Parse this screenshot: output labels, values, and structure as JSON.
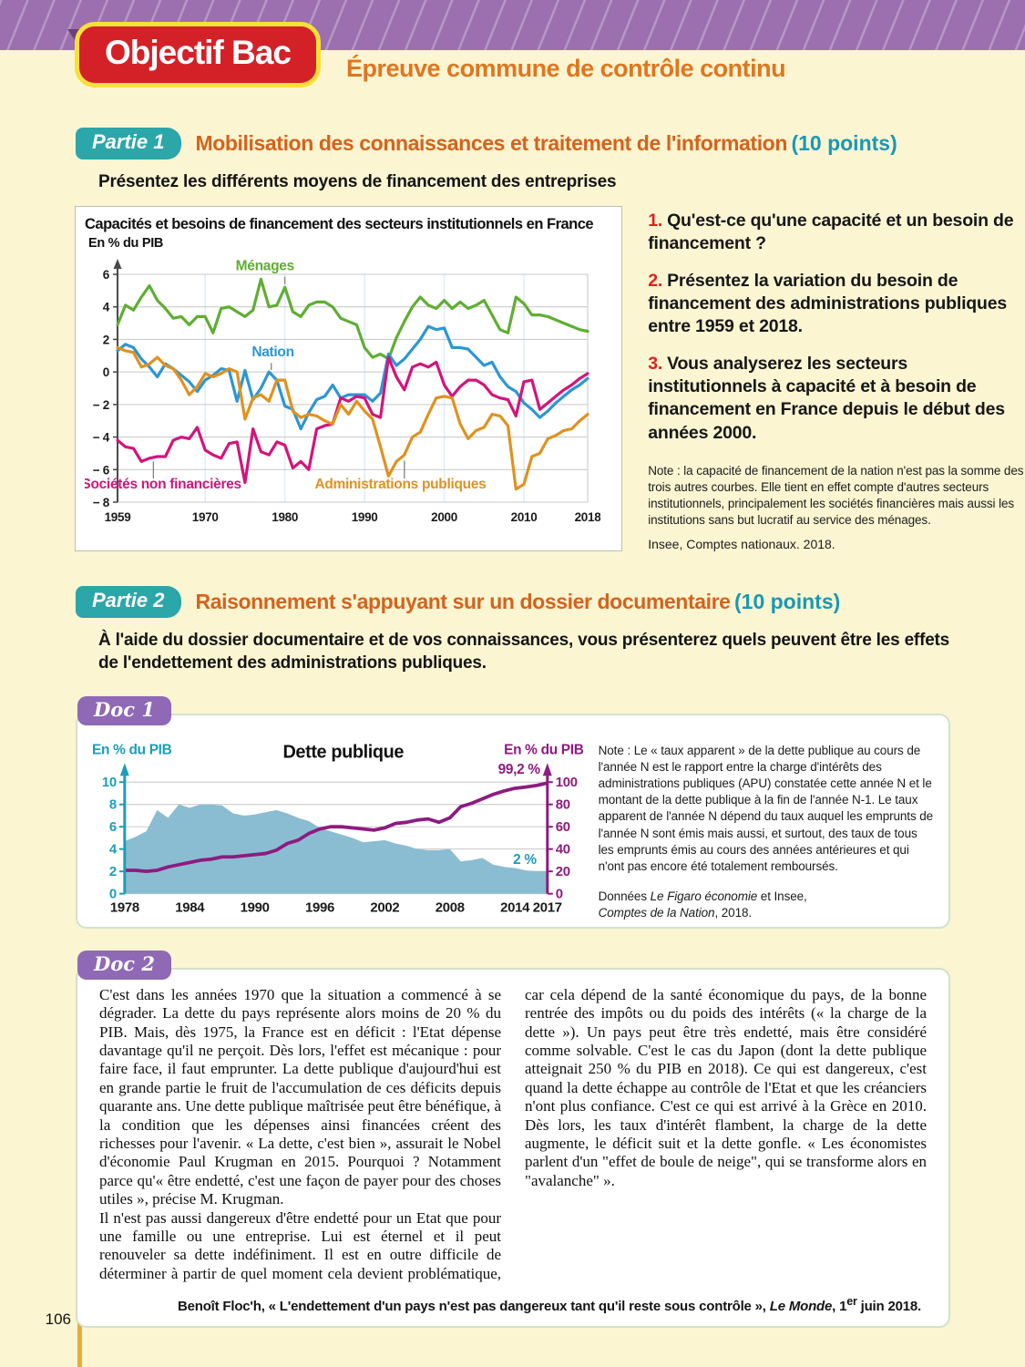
{
  "header": {
    "badge": "Objectif Bac",
    "subtitle": "Épreuve commune de contrôle continu"
  },
  "part1": {
    "badge": "Partie 1",
    "title": "Mobilisation des connaissances et traitement de l'information",
    "points": "(10 points)",
    "instruction": "Présentez les différents moyens de financement des entreprises",
    "questions": [
      {
        "num": "1.",
        "text": "Qu'est-ce qu'une capacité et un besoin de financement ?"
      },
      {
        "num": "2.",
        "text": "Présentez la variation du besoin de financement des administrations publiques entre 1959 et 2018."
      },
      {
        "num": "3.",
        "text": "Vous analyserez les secteurs institutionnels à capacité et à besoin de financement en France depuis le début des années 2000."
      }
    ],
    "note": "Note : la capacité de financement de la nation n'est pas la somme des trois autres courbes. Elle tient en effet compte d'autres secteurs institutionnels, principalement les sociétés financières mais aussi les institutions sans but lucratif au service des ménages.",
    "source": "Insee, Comptes nationaux. 2018."
  },
  "part2": {
    "badge": "Partie 2",
    "title": "Raisonnement s'appuyant sur un dossier documentaire",
    "points": "(10 points)",
    "instruction": "À l'aide du dossier documentaire et de vos connaissances, vous présenterez quels peuvent être les effets de l'endettement des administrations publiques."
  },
  "doc1": {
    "badge": "Doc 1",
    "note": "Note : Le « taux apparent » de la dette publique au cours de l'année N est le rapport entre la charge d'intérêts des administrations publiques (APU) constatée cette année N et le montant de la dette publique à la fin de l'année N-1. Le taux apparent de l'année N dépend du taux auquel les emprunts de l'année N sont émis mais aussi, et surtout, des taux de tous les emprunts émis au cours des années antérieures et qui n'ont pas encore été totalement remboursés.",
    "source": {
      "pre": "Données ",
      "italic1": "Le Figaro économie",
      "mid": " et Insee,",
      "italic2": "Comptes de la Nation",
      "post": ", 2018."
    }
  },
  "doc2": {
    "badge": "Doc 2",
    "paragraphs": [
      "C'est dans les années 1970 que la situation a commencé à se dégrader. La dette du pays représente alors moins de 20 % du PIB. Mais, dès 1975, la France est en déficit : l'Etat dépense davantage qu'il ne perçoit. Dès lors, l'effet est mécanique : pour faire face, il faut emprunter. La dette publique d'aujourd'hui est en grande partie le fruit de l'accumulation de ces déficits depuis quarante ans. Une dette publique maîtrisée peut être bénéfique, à la condition que les dépenses ainsi financées créent des richesses pour l'avenir. « La dette, c'est bien », assurait le Nobel d'économie Paul Krugman en 2015. Pourquoi ? Notamment parce qu'« être endetté, c'est une façon de payer pour des choses utiles », précise M. Krugman.",
      "Il n'est pas aussi dangereux d'être endetté pour un Etat que pour une famille ou une entreprise. Lui est éternel et il peut renouveler sa dette indéfiniment. Il est en outre difficile de déterminer à partir de quel moment cela devient problématique, car cela dépend de la santé économique du pays, de la bonne rentrée des impôts ou du poids des intérêts (« la charge de la dette »). Un pays peut être très endetté, mais être considéré comme solvable. C'est le cas du Japon (dont la dette publique atteignait 250 % du PIB en 2018). Ce qui est dangereux, c'est quand la dette échappe au contrôle de l'Etat et que les créanciers n'ont plus confiance. C'est ce qui est arrivé à la Grèce en 2010. Dès lors, les taux d'intérêt flambent, la charge de la dette augmente, le déficit suit et la dette gonfle. « Les économistes parlent d'un \"effet de boule de neige\", qui se transforme alors en \"avalanche\" »."
    ],
    "citation": {
      "pre": "Benoît Floc'h, « L'endettement d'un pays n'est pas dangereux tant qu'il reste sous contrôle », ",
      "italic": "Le Monde",
      "mid": ", 1",
      "sup": "er",
      "post": " juin 2018."
    }
  },
  "page": {
    "number": "106"
  },
  "colors": {
    "band_purple": "#9C70AF",
    "badge_red": "#D42128",
    "badge_border_yellow": "#F6E03A",
    "teal_badge": "#2BA6A9",
    "heading_orange": "#D6621C",
    "points_teal": "#1899B5",
    "question_red": "#E0211A",
    "doc_badge_purple": "#8F68B6",
    "doc_border_green": "#CFE3C8",
    "page_bg": "#FBF5D2",
    "edge_gold": "#E2AF3B"
  },
  "chart_data": [
    {
      "type": "line",
      "title": "Capacités et besoins de financement des secteurs institutionnels en France",
      "unit_label": "En % du PIB",
      "x_start": 1959,
      "x_end": 2018,
      "x_ticks": [
        1959,
        1970,
        1980,
        1990,
        2000,
        2010,
        2018
      ],
      "ylim": [
        -8,
        6
      ],
      "y_ticks": [
        6,
        4,
        2,
        0,
        -2,
        -4,
        -6,
        -8
      ],
      "grid": true,
      "source": "Insee, Comptes nationaux. 2018.",
      "series": [
        {
          "name": "Ménages",
          "color": "#5FAE32",
          "values": [
            2.9,
            4.1,
            3.8,
            4.6,
            5.3,
            4.4,
            3.9,
            3.3,
            3.4,
            2.9,
            3.4,
            3.4,
            2.4,
            3.9,
            4.0,
            3.7,
            3.4,
            3.8,
            5.7,
            4.0,
            4.1,
            5.2,
            3.7,
            3.4,
            4.1,
            4.3,
            4.3,
            4.0,
            3.3,
            3.1,
            2.9,
            1.5,
            0.9,
            1.1,
            0.8,
            2.1,
            3.1,
            4.0,
            4.6,
            4.1,
            3.9,
            4.4,
            3.9,
            4.3,
            3.9,
            4.1,
            4.4,
            3.5,
            2.6,
            2.4,
            4.6,
            4.2,
            3.5,
            3.5,
            3.4,
            3.2,
            3.0,
            2.8,
            2.6,
            2.5
          ],
          "label": {
            "x": 1977.5,
            "y": 6.25,
            "leader": {
              "x": 1980,
              "from": 5.85,
              "to": 5.4
            }
          }
        },
        {
          "name": "Nation",
          "color": "#2E96D3",
          "values": [
            1.3,
            1.7,
            1.5,
            0.8,
            0.3,
            -0.3,
            0.5,
            0.2,
            -0.2,
            -0.6,
            -1.2,
            -0.5,
            -0.2,
            0.2,
            0.1,
            -1.8,
            0.1,
            -1.7,
            -1.0,
            0.0,
            -0.5,
            -2.1,
            -2.3,
            -3.5,
            -2.5,
            -1.7,
            -1.5,
            -0.8,
            -1.6,
            -1.4,
            -1.4,
            -1.4,
            -1.8,
            -1.3,
            1.1,
            0.4,
            0.8,
            1.4,
            2.0,
            2.8,
            2.6,
            2.7,
            1.5,
            1.5,
            1.4,
            0.9,
            0.4,
            0.6,
            -0.3,
            -0.9,
            -1.2,
            -1.9,
            -2.3,
            -2.8,
            -2.4,
            -1.9,
            -1.5,
            -1.1,
            -0.8,
            -0.4
          ],
          "label": {
            "x": 1978.5,
            "y": 0.95,
            "leader": {
              "x": 1978.3,
              "from": 0.55,
              "to": 0.12
            }
          }
        },
        {
          "name": "Sociétés non financières",
          "color": "#D3147C",
          "values": [
            -4.2,
            -4.6,
            -4.7,
            -5.5,
            -5.3,
            -5.2,
            -5.2,
            -4.2,
            -4.0,
            -4.1,
            -3.4,
            -4.8,
            -5.1,
            -5.3,
            -4.4,
            -4.3,
            -6.8,
            -3.5,
            -4.9,
            -5.1,
            -4.3,
            -4.5,
            -5.9,
            -5.5,
            -6.0,
            -3.5,
            -3.3,
            -3.2,
            -1.6,
            -1.8,
            -1.5,
            -1.6,
            -2.6,
            -2.8,
            0.9,
            -0.3,
            -1.1,
            0.3,
            0.5,
            0.3,
            0.6,
            -0.8,
            -1.5,
            -0.9,
            -0.5,
            -0.5,
            -0.8,
            -1.4,
            -1.6,
            -1.7,
            -2.7,
            -0.6,
            -0.5,
            -2.3,
            -1.9,
            -1.5,
            -1.1,
            -0.8,
            -0.4,
            -0.1
          ],
          "label": {
            "x": 1964.5,
            "y": -7.15,
            "leader": {
              "x": 1963.5,
              "from": -5.5,
              "to": -6.55
            }
          }
        },
        {
          "name": "Administrations publiques",
          "color": "#E0921D",
          "values": [
            1.5,
            1.3,
            1.2,
            0.3,
            0.5,
            0.9,
            0.4,
            0.2,
            -0.5,
            -1.4,
            -0.9,
            -0.1,
            -0.3,
            -0.1,
            0.2,
            0.0,
            -2.9,
            -1.6,
            -1.4,
            -1.8,
            -0.5,
            -0.5,
            -2.4,
            -2.8,
            -2.6,
            -2.7,
            -3.0,
            -3.2,
            -2.0,
            -2.6,
            -1.8,
            -2.4,
            -2.9,
            -4.6,
            -6.4,
            -5.5,
            -5.1,
            -4.0,
            -3.7,
            -2.6,
            -1.6,
            -1.5,
            -1.6,
            -3.2,
            -4.1,
            -3.6,
            -3.4,
            -2.6,
            -2.7,
            -3.3,
            -7.2,
            -6.9,
            -5.2,
            -5.0,
            -4.1,
            -3.9,
            -3.6,
            -3.5,
            -3.0,
            -2.6
          ],
          "label": {
            "x": 1994.5,
            "y": -7.15,
            "leader": {
              "x": 1995,
              "from": -5.45,
              "to": -6.55
            }
          }
        }
      ]
    },
    {
      "type": "area+line",
      "title": "Dette publique",
      "x_start": 1978,
      "x_end": 2017,
      "x_ticks": [
        1978,
        1984,
        1990,
        1996,
        2002,
        2008,
        2014,
        2017
      ],
      "left_axis": {
        "label": "En % du PIB",
        "color": "#1B9EBB",
        "lim": [
          0,
          10
        ],
        "ticks": [
          0,
          2,
          4,
          6,
          8,
          10
        ]
      },
      "right_axis": {
        "label": "En % du PIB",
        "color": "#8E1B80",
        "lim": [
          0,
          100
        ],
        "ticks": [
          0,
          20,
          40,
          60,
          80,
          100
        ]
      },
      "grid": true,
      "series": [
        {
          "name": "Taux apparent de la dette",
          "type": "area",
          "axis": "left",
          "color": "#8BBDD2",
          "end_label": "2 %",
          "values": [
            4.7,
            5.1,
            5.6,
            7.5,
            6.8,
            8.0,
            7.7,
            8.0,
            8.0,
            7.9,
            7.2,
            7.0,
            7.1,
            7.3,
            7.5,
            7.2,
            6.8,
            6.5,
            5.9,
            5.6,
            5.3,
            5.0,
            4.6,
            4.7,
            4.8,
            4.5,
            4.3,
            4.0,
            3.9,
            3.9,
            4.0,
            2.9,
            3.0,
            3.2,
            2.6,
            2.4,
            2.3,
            2.1,
            2.0,
            2.0
          ]
        },
        {
          "name": "Dette publique",
          "type": "line",
          "axis": "right",
          "color": "#8E1B80",
          "end_label": "99,2 %",
          "values": [
            21,
            21,
            20,
            21,
            24,
            26,
            28,
            30,
            31,
            33,
            33,
            34,
            35,
            36,
            39,
            45,
            48,
            54,
            58,
            60,
            60,
            59,
            58,
            57,
            59,
            63,
            64,
            66,
            67,
            64,
            68,
            78,
            81,
            85,
            89,
            92,
            94.5,
            95.5,
            97,
            99.2
          ]
        }
      ]
    }
  ]
}
